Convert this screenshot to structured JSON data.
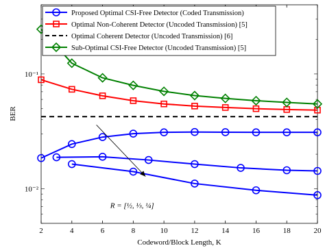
{
  "chart_data": {
    "type": "line",
    "title": "",
    "xlabel": "Codeword/Block Length, K",
    "ylabel": "BER",
    "xlim": [
      2,
      20
    ],
    "ylim": [
      0.005,
      0.4
    ],
    "y_scale": "log",
    "x_ticks": [
      "2",
      "4",
      "6",
      "8",
      "10",
      "12",
      "14",
      "16",
      "18",
      "20"
    ],
    "y_ticks": [
      {
        "value": 0.1,
        "label": "10⁻¹"
      },
      {
        "value": 0.01,
        "label": "10⁻²"
      }
    ],
    "grid": false,
    "legend_position": "top",
    "series": [
      {
        "name": "Proposed Optimal CSI-Free Detector (Coded Transmission)",
        "color": "#0000ff",
        "marker": "circle",
        "line": "solid",
        "show_in_legend": true,
        "x": [
          2,
          4,
          6,
          8,
          10,
          12,
          14,
          16,
          18,
          20
        ],
        "y": [
          0.0185,
          0.0245,
          0.0282,
          0.0302,
          0.031,
          0.0312,
          0.0311,
          0.031,
          0.031,
          0.031
        ]
      },
      {
        "name": "Proposed Optimal CSI-Free Detector (Coded Transmission)",
        "color": "#0000ff",
        "marker": "circle",
        "line": "solid",
        "show_in_legend": false,
        "x": [
          3,
          6,
          9,
          12,
          15,
          18,
          20
        ],
        "y": [
          0.0188,
          0.019,
          0.0178,
          0.0164,
          0.0152,
          0.0145,
          0.0143
        ]
      },
      {
        "name": "Proposed Optimal CSI-Free Detector (Coded Transmission)",
        "color": "#0000ff",
        "marker": "circle",
        "line": "solid",
        "show_in_legend": false,
        "x": [
          4,
          8,
          12,
          16,
          20
        ],
        "y": [
          0.0164,
          0.0141,
          0.0111,
          0.0097,
          0.0088
        ]
      },
      {
        "name": "Optimal Non-Coherent Detector (Uncoded Transmission) [5]",
        "color": "#ff0000",
        "marker": "square",
        "line": "solid",
        "show_in_legend": true,
        "x": [
          2,
          4,
          6,
          8,
          10,
          12,
          14,
          16,
          18,
          20
        ],
        "y": [
          0.089,
          0.0735,
          0.0645,
          0.0585,
          0.0548,
          0.0525,
          0.051,
          0.0498,
          0.049,
          0.0484
        ]
      },
      {
        "name": "Optimal Coherent Detector (Uncoded Transmission) [6]",
        "color": "#000000",
        "marker": "none",
        "line": "dashed",
        "show_in_legend": true,
        "x": [
          2,
          20
        ],
        "y": [
          0.0425,
          0.0425
        ]
      },
      {
        "name": "Sub-Optimal CSI-Free Detector (Uncoded Transmission) [5]",
        "color": "#008000",
        "marker": "diamond",
        "line": "solid",
        "show_in_legend": true,
        "x": [
          2,
          4,
          6,
          8,
          10,
          12,
          14,
          16,
          18,
          20
        ],
        "y": [
          0.245,
          0.124,
          0.0925,
          0.0795,
          0.0705,
          0.0648,
          0.0612,
          0.0585,
          0.0565,
          0.0548
        ]
      }
    ],
    "annotation": {
      "text": "R = [½, ⅓, ¼]",
      "arrow_from": {
        "x": 5.6,
        "y": 0.036
      },
      "arrow_to": {
        "x": 8.8,
        "y": 0.0128
      },
      "text_anchor": {
        "x": 6.5,
        "y": 0.0068
      }
    }
  }
}
